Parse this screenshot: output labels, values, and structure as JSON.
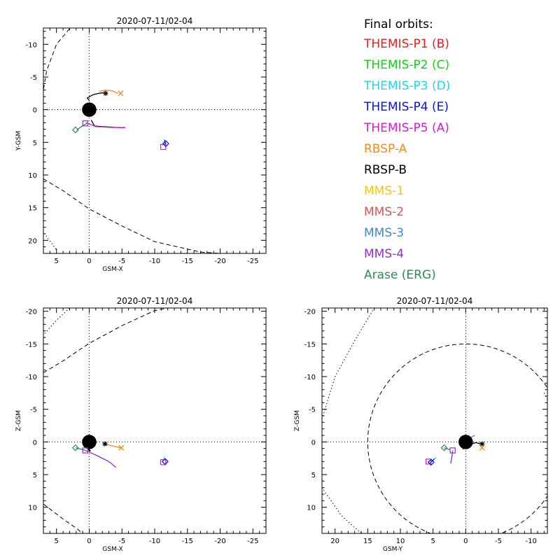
{
  "legend": {
    "heading": "Final orbits:",
    "entries": [
      {
        "label": "THEMIS-P1 (B)",
        "color": "#e32020"
      },
      {
        "label": "THEMIS-P2 (C)",
        "color": "#10d010"
      },
      {
        "label": "THEMIS-P3 (D)",
        "color": "#1ed8e8"
      },
      {
        "label": "THEMIS-P4 (E)",
        "color": "#0a14d8"
      },
      {
        "label": "THEMIS-P5 (A)",
        "color": "#d21ed2"
      },
      {
        "label": "RBSP-A",
        "color": "#f08a1e"
      },
      {
        "label": "RBSP-B",
        "color": "#000000"
      },
      {
        "label": "MMS-1",
        "color": "#f0c814"
      },
      {
        "label": "MMS-2",
        "color": "#d25a5a"
      },
      {
        "label": "MMS-3",
        "color": "#3c8cbe"
      },
      {
        "label": "MMS-4",
        "color": "#8c32c8"
      },
      {
        "label": "Arase (ERG)",
        "color": "#2e8b57"
      }
    ]
  },
  "chart_data": [
    {
      "type": "scatter",
      "title": "2020-07-11/02-04",
      "xlabel": "GSM-X",
      "ylabel": "Y-GSM",
      "xlim": [
        7,
        -27
      ],
      "ylim": [
        -12.5,
        22
      ],
      "xticks": [
        5,
        0,
        -5,
        -10,
        -15,
        -20,
        -25
      ],
      "yticks": [
        -10,
        -5,
        0,
        5,
        10,
        15,
        20
      ],
      "grid": false,
      "boundaries": [
        {
          "style": "dashed",
          "points": [
            [
              3,
              -12.4
            ],
            [
              5,
              -10
            ],
            [
              6.5,
              -6
            ],
            [
              7,
              -3
            ]
          ]
        },
        {
          "style": "dashed",
          "points": [
            [
              7,
              10.6
            ],
            [
              4,
              12.4
            ],
            [
              0,
              15.2
            ],
            [
              -5,
              17.8
            ],
            [
              -10,
              20.2
            ],
            [
              -17,
              21.8
            ],
            [
              -20,
              22
            ]
          ]
        },
        {
          "style": "dotted",
          "points": [
            [
              6.6,
              19.3
            ],
            [
              5.7,
              20.5
            ],
            [
              5.0,
              21.5
            ]
          ]
        }
      ],
      "tracks": [
        {
          "color": "#000000",
          "points": [
            [
              0,
              -1.4
            ],
            [
              0.3,
              -1.8
            ],
            [
              -0.6,
              -2.3
            ],
            [
              -1.5,
              -2.5
            ],
            [
              -2.2,
              -2.6
            ]
          ]
        },
        {
          "color": "#f08a1e",
          "points": [
            [
              -1.5,
              -2.8
            ],
            [
              -2.5,
              -3.0
            ],
            [
              -3.5,
              -2.9
            ],
            [
              -4.4,
              -2.5
            ]
          ]
        },
        {
          "color": "#000000",
          "points": [
            [
              -0.3,
              1.6
            ],
            [
              -0.8,
              2.5
            ],
            [
              -2,
              2.6
            ],
            [
              -4,
              2.7
            ],
            [
              -5.5,
              2.75
            ]
          ]
        },
        {
          "color": "#d21ed2",
          "points": [
            [
              0.5,
              2.0
            ],
            [
              -1,
              2.6
            ],
            [
              -3,
              2.7
            ],
            [
              -5.5,
              2.75
            ]
          ]
        },
        {
          "color": "#2e8b57",
          "points": [
            [
              1.9,
              3.1
            ],
            [
              1.2,
              2.6
            ],
            [
              0.4,
              2.1
            ]
          ]
        },
        {
          "color": "#1ed8e8",
          "points": [
            [
              -11.4,
              4.8
            ],
            [
              -11.6,
              5.4
            ]
          ]
        },
        {
          "color": "#0a14d8",
          "points": [
            [
              -11.5,
              4.6
            ],
            [
              -11.7,
              5.3
            ]
          ]
        }
      ],
      "markers": [
        {
          "symbol": "asterisk",
          "color": "#000000",
          "x": -2.5,
          "y": -2.5
        },
        {
          "symbol": "x",
          "color": "#f08a1e",
          "x": -4.8,
          "y": -2.5
        },
        {
          "symbol": "square",
          "color": "#8c32c8",
          "x": 0.6,
          "y": 2.1
        },
        {
          "symbol": "diamond",
          "color": "#2e8b57",
          "x": 2.1,
          "y": 3.1
        },
        {
          "symbol": "square",
          "color": "#d21ed2",
          "x": -11.3,
          "y": 5.7
        },
        {
          "symbol": "diamond",
          "color": "#0a14d8",
          "x": -11.7,
          "y": 5.2
        }
      ]
    },
    {
      "type": "scatter",
      "title": "2020-07-11/02-04",
      "xlabel": "GSM-X",
      "ylabel": "Z-GSM",
      "xlim": [
        7,
        -27
      ],
      "ylim": [
        -20.5,
        14
      ],
      "xticks": [
        5,
        0,
        -5,
        -10,
        -15,
        -20,
        -25
      ],
      "yticks": [
        -20,
        -15,
        -10,
        -5,
        0,
        5,
        10
      ],
      "grid": false,
      "boundaries": [
        {
          "style": "dashed",
          "points": [
            [
              7,
              9.5
            ],
            [
              4,
              11.8
            ],
            [
              2,
              13.2
            ],
            [
              1,
              14
            ]
          ]
        },
        {
          "style": "dashed",
          "points": [
            [
              7,
              -10.6
            ],
            [
              4,
              -12.4
            ],
            [
              0,
              -15.1
            ],
            [
              -5,
              -17.8
            ],
            [
              -10,
              -20.1
            ],
            [
              -12,
              -20.5
            ]
          ]
        },
        {
          "style": "dotted",
          "points": [
            [
              6.8,
              -16.6
            ],
            [
              5,
              -18.6
            ],
            [
              3,
              -20.5
            ]
          ]
        }
      ],
      "tracks": [
        {
          "color": "#000000",
          "points": [
            [
              0.3,
              1.1
            ],
            [
              -0.2,
              1.4
            ],
            [
              0.3,
              0.8
            ],
            [
              0.8,
              0.4
            ]
          ]
        },
        {
          "color": "#f08a1e",
          "points": [
            [
              -2.4,
              0.3
            ],
            [
              -3.5,
              0.6
            ],
            [
              -4.8,
              0.9
            ]
          ]
        },
        {
          "color": "#8c32c8",
          "points": [
            [
              0.6,
              1.3
            ],
            [
              -1,
              2.0
            ],
            [
              -3,
              3.0
            ],
            [
              -4.1,
              3.9
            ]
          ]
        },
        {
          "color": "#2e8b57",
          "points": [
            [
              2.1,
              0.9
            ],
            [
              1.2,
              1.1
            ],
            [
              0.6,
              1.3
            ]
          ]
        },
        {
          "color": "#1ed8e8",
          "points": [
            [
              -11.3,
              2.9
            ],
            [
              -11.5,
              2.3
            ]
          ]
        }
      ],
      "markers": [
        {
          "symbol": "asterisk",
          "color": "#000000",
          "x": -2.4,
          "y": 0.3
        },
        {
          "symbol": "x",
          "color": "#f08a1e",
          "x": -4.9,
          "y": 0.9
        },
        {
          "symbol": "square",
          "color": "#8c32c8",
          "x": 0.6,
          "y": 1.3
        },
        {
          "symbol": "diamond",
          "color": "#2e8b57",
          "x": 2.1,
          "y": 0.9
        },
        {
          "symbol": "square",
          "color": "#d21ed2",
          "x": -11.3,
          "y": 3.1
        },
        {
          "symbol": "diamond",
          "color": "#0a14d8",
          "x": -11.6,
          "y": 3.0
        }
      ]
    },
    {
      "type": "scatter",
      "title": "2020-07-11/02-04",
      "xlabel": "GSM-Y",
      "ylabel": "Z-GSM",
      "xlim": [
        22,
        -12.5
      ],
      "ylim": [
        -20.5,
        14
      ],
      "xticks": [
        20,
        15,
        10,
        5,
        0,
        -5,
        -10
      ],
      "yticks": [
        -20,
        -15,
        -10,
        -5,
        0,
        5,
        10
      ],
      "grid": false,
      "boundaries": [
        {
          "style": "dashed",
          "circle": {
            "cx": 0,
            "cy": 0,
            "r": 15
          }
        },
        {
          "style": "dotted",
          "points": [
            [
              22,
              -3.5
            ],
            [
              20,
              -10
            ],
            [
              17,
              -15.5
            ],
            [
              14,
              -20.5
            ]
          ]
        },
        {
          "style": "dotted",
          "points": [
            [
              16,
              14
            ],
            [
              19,
              11.3
            ],
            [
              22,
              7
            ]
          ]
        },
        {
          "style": "dotted",
          "points": [
            [
              -12.5,
              -6.5
            ],
            [
              -12,
              -7.5
            ]
          ]
        }
      ],
      "tracks": [
        {
          "color": "#000000",
          "points": [
            [
              0.5,
              1.1
            ],
            [
              -0.5,
              0.5
            ],
            [
              -1.5,
              0.1
            ],
            [
              -2.3,
              0.3
            ]
          ]
        },
        {
          "color": "#8c32c8",
          "points": [
            [
              2.0,
              1.3
            ],
            [
              2.1,
              2.2
            ],
            [
              2.3,
              3.3
            ]
          ]
        },
        {
          "color": "#1ed8e8",
          "points": [
            [
              4.5,
              2.4
            ],
            [
              5.3,
              3.0
            ]
          ]
        },
        {
          "color": "#0a14d8",
          "points": [
            [
              4.8,
              2.6
            ],
            [
              5.5,
              3.3
            ]
          ]
        },
        {
          "color": "#2e8b57",
          "points": [
            [
              3.3,
              0.9
            ],
            [
              2.4,
              1.2
            ]
          ]
        },
        {
          "color": "#3c8cbe",
          "points": [
            [
              -0.8,
              -0.7
            ],
            [
              -1.4,
              -1.0
            ]
          ]
        }
      ],
      "markers": [
        {
          "symbol": "asterisk",
          "color": "#000000",
          "x": -2.5,
          "y": 0.3
        },
        {
          "symbol": "x",
          "color": "#f08a1e",
          "x": -2.5,
          "y": 0.9
        },
        {
          "symbol": "square",
          "color": "#8c32c8",
          "x": 2.0,
          "y": 1.3
        },
        {
          "symbol": "diamond",
          "color": "#2e8b57",
          "x": 3.3,
          "y": 0.9
        },
        {
          "symbol": "square",
          "color": "#d21ed2",
          "x": 5.7,
          "y": 3.0
        },
        {
          "symbol": "diamond",
          "color": "#0a14d8",
          "x": 5.3,
          "y": 3.1
        }
      ]
    }
  ]
}
